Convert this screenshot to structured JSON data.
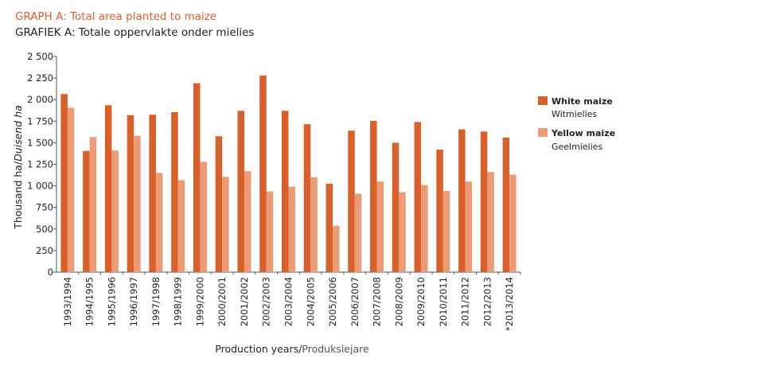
{
  "title_en": "GRAPH A: Total area planted to maize",
  "title_af": "GRAFIEK A: Totale oppervlakte onder mielies",
  "chart_data": {
    "type": "bar",
    "ylabel": "Thousand ha/",
    "ylabel_italic": "Duisend ha",
    "xlabel": "Production years/",
    "xlabel_secondary": "Produksiejare",
    "ylim": [
      0,
      2500
    ],
    "yticks": [
      0,
      250,
      500,
      750,
      1000,
      1250,
      1500,
      1750,
      2000,
      2250,
      2500
    ],
    "ytick_labels": [
      "0",
      "250",
      "500",
      "750",
      "1 000",
      "1 250",
      "1 500",
      "1 750",
      "2 000",
      "2 250",
      "2 500"
    ],
    "grid": false,
    "legend_position": "right",
    "categories": [
      "1993/1994",
      "1994/1995",
      "1995/1996",
      "1996/1997",
      "1997/1998",
      "1998/1999",
      "1999/2000",
      "2000/2001",
      "2001/2002",
      "2002/2003",
      "2003/2004",
      "2004/2005",
      "2005/2006",
      "2006/2007",
      "2007/2008",
      "2008/2009",
      "2009/2010",
      "2010/2011",
      "2011/2012",
      "2012/2013",
      "*2013/2014"
    ],
    "series": [
      {
        "name": "White maize",
        "name_af": "Witmielies",
        "color": "#d9602b",
        "values": [
          2065,
          1405,
          1935,
          1820,
          1825,
          1855,
          2190,
          1575,
          1870,
          2280,
          1870,
          1715,
          1025,
          1640,
          1755,
          1500,
          1740,
          1420,
          1655,
          1630,
          1560
        ]
      },
      {
        "name": "Yellow maize",
        "name_af": "Geelmielies",
        "color": "#ec9b76",
        "values": [
          1905,
          1565,
          1410,
          1580,
          1150,
          1065,
          1280,
          1105,
          1170,
          935,
          990,
          1100,
          535,
          910,
          1050,
          925,
          1010,
          940,
          1050,
          1160,
          1130
        ]
      }
    ]
  }
}
